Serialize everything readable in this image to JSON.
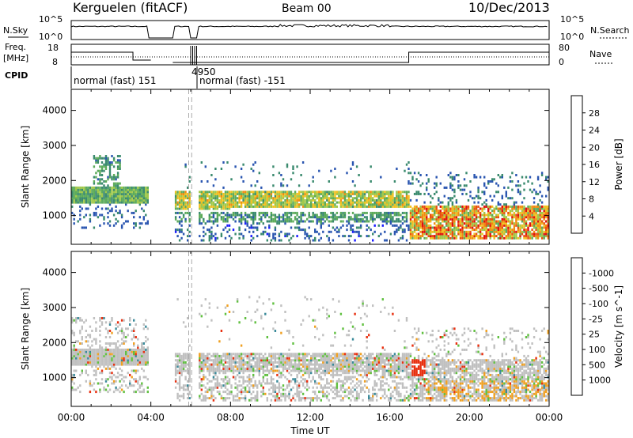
{
  "header": {
    "title": "Kerguelen (fitACF)",
    "beam": "Beam 00",
    "date": "10/Dec/2013"
  },
  "status_panels": {
    "nsky": {
      "label": "N.Sky",
      "ticks": [
        "10^5",
        "10^0"
      ]
    },
    "nsearch": {
      "label": "N.Search",
      "ticks": [
        "10^5",
        "10^0"
      ]
    },
    "freq": {
      "label_line1": "Freq.",
      "label_line2": "[MHz]",
      "ticks": [
        "18",
        "8"
      ]
    },
    "nave": {
      "label": "Nave",
      "ticks": [
        "80",
        "0"
      ]
    },
    "cpid": {
      "label": "CPID",
      "segments": [
        {
          "text": "normal (fast) 151"
        },
        {
          "text": "4950"
        },
        {
          "text": "normal (fast) -151"
        }
      ]
    }
  },
  "chart_data": [
    {
      "type": "heatmap",
      "panel": "power",
      "xlabel": "",
      "ylabel": "Slant Range [km]",
      "xlim": [
        "00:00",
        "24:00"
      ],
      "ylim": [
        180,
        4600
      ],
      "yticks": [
        "1000",
        "2000",
        "3000",
        "4000"
      ],
      "colorbar": {
        "label": "Power [dB]",
        "ticks": [
          "4",
          "8",
          "12",
          "16",
          "20",
          "24",
          "28"
        ],
        "colors": [
          "#1a1aff",
          "#2a55b0",
          "#3a8a6e",
          "#5cab5a",
          "#a0c84a",
          "#f0c020",
          "#f08c10",
          "#e85010",
          "#e01010"
        ]
      },
      "gaps_hours": [
        [
          3.9,
          5.1
        ],
        [
          5.9,
          6.3
        ]
      ],
      "features": [
        {
          "name": "main echo band",
          "x": [
            "00:00",
            "16:55"
          ],
          "range_km": [
            1100,
            1700
          ],
          "power_db": [
            10,
            22
          ]
        },
        {
          "name": "lower band",
          "x": [
            "06:10",
            "16:55"
          ],
          "range_km": [
            800,
            1000
          ],
          "power_db": [
            6,
            14
          ]
        },
        {
          "name": "late echoes",
          "x": [
            "17:00",
            "24:00"
          ],
          "range_km": [
            300,
            1300
          ],
          "power_db": [
            12,
            30
          ]
        }
      ]
    },
    {
      "type": "heatmap",
      "panel": "velocity",
      "xlabel": "Time UT",
      "ylabel": "Slant Range [km]",
      "xticks": [
        "00:00",
        "04:00",
        "08:00",
        "12:00",
        "16:00",
        "20:00",
        "00:00"
      ],
      "yticks": [
        "1000",
        "2000",
        "3000",
        "4000"
      ],
      "colorbar": {
        "label": "Velocity [m s^-1]",
        "ticks": [
          "1000",
          "500",
          "100",
          "25",
          "-25",
          "-100",
          "-500",
          "-1000"
        ],
        "colors": [
          "#2060c0",
          "#3a8a9a",
          "#4aa060",
          "#60c040",
          "#c0c0c0",
          "#f0a020",
          "#f07010",
          "#e83010",
          "#e00000"
        ]
      },
      "features": [
        {
          "name": "ground scatter band",
          "x": [
            "00:00",
            "16:55"
          ],
          "range_km": [
            1100,
            1700
          ],
          "velocity": [
            -25,
            25
          ]
        },
        {
          "name": "negative velocity patch",
          "x": [
            "17:00",
            "17:40"
          ],
          "range_km": [
            1000,
            1500
          ],
          "velocity": [
            -1000,
            -500
          ]
        }
      ]
    }
  ]
}
